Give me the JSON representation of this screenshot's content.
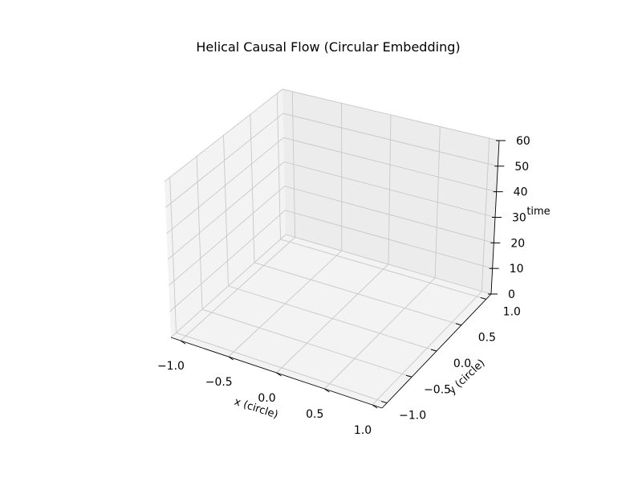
{
  "chart_data": {
    "type": "line",
    "projection": "3d",
    "title": "Helical Causal Flow (Circular Embedding)",
    "xlabel": "x (circle)",
    "ylabel": "y (circle)",
    "zlabel": "time",
    "xlim": [
      -1.1,
      1.1
    ],
    "ylim": [
      -1.1,
      1.1
    ],
    "zlim": [
      0,
      60
    ],
    "x_ticks": [
      "−1.0",
      "−0.5",
      "0.0",
      "0.5",
      "1.0"
    ],
    "y_ticks": [
      "−1.0",
      "−0.5",
      "0.0",
      "0.5",
      "1.0"
    ],
    "z_ticks": [
      "0",
      "10",
      "20",
      "30",
      "40",
      "50",
      "60"
    ],
    "grid": true,
    "series": []
  }
}
